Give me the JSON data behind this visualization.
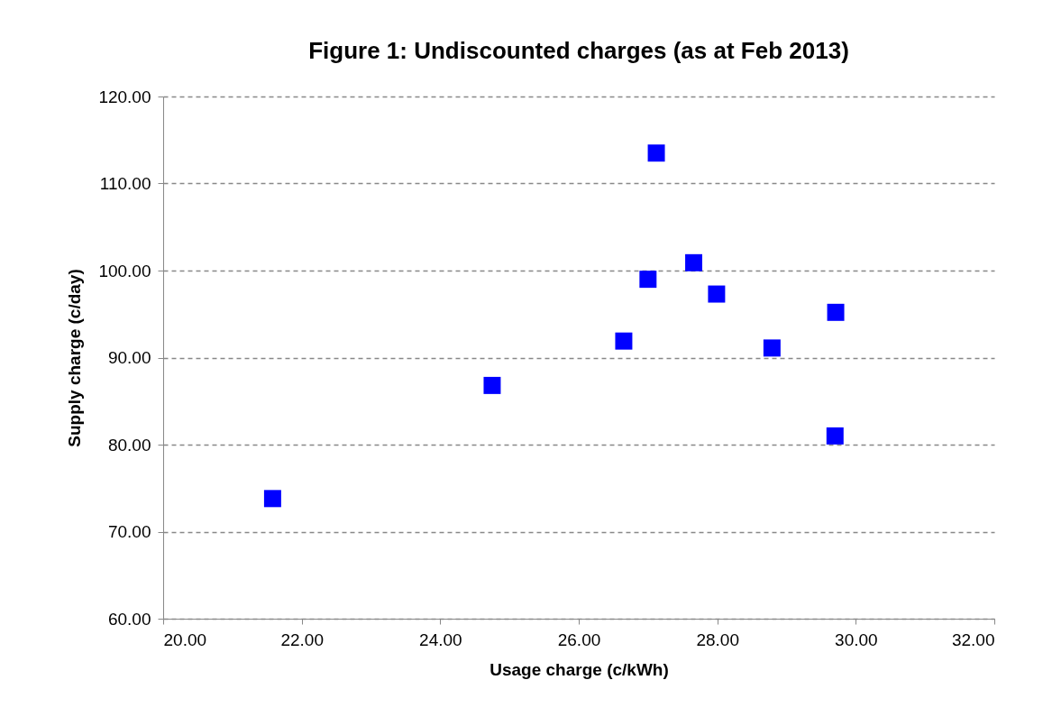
{
  "chart_data": {
    "type": "scatter",
    "title": "Figure 1:   Undiscounted charges (as at Feb 2013)",
    "xlabel": "Usage charge (c/kWh)",
    "ylabel": "Supply charge (c/day)",
    "x": [
      21.58,
      24.75,
      26.65,
      27.0,
      27.12,
      27.66,
      27.99,
      28.79,
      29.71,
      29.7
    ],
    "series": [
      {
        "color": "#0000ff",
        "values": [
          73.8,
          86.8,
          91.9,
          99.0,
          113.5,
          100.9,
          97.3,
          91.1,
          95.2,
          81.0
        ]
      }
    ],
    "xlim": [
      20,
      32
    ],
    "ylim": [
      60,
      120
    ],
    "xticks": [
      {
        "value": 20,
        "label": "20.00"
      },
      {
        "value": 22,
        "label": "22.00"
      },
      {
        "value": 24,
        "label": "24.00"
      },
      {
        "value": 26,
        "label": "26.00"
      },
      {
        "value": 28,
        "label": "28.00"
      },
      {
        "value": 30,
        "label": "30.00"
      },
      {
        "value": 32,
        "label": "32.00"
      }
    ],
    "yticks": [
      {
        "value": 60,
        "label": "60.00"
      },
      {
        "value": 70,
        "label": "70.00"
      },
      {
        "value": 80,
        "label": "80.00"
      },
      {
        "value": 90,
        "label": "90.00"
      },
      {
        "value": 100,
        "label": "100.00"
      },
      {
        "value": 110,
        "label": "110.00"
      },
      {
        "value": 120,
        "label": "120.00"
      }
    ],
    "grid": "y",
    "marker": "square"
  }
}
